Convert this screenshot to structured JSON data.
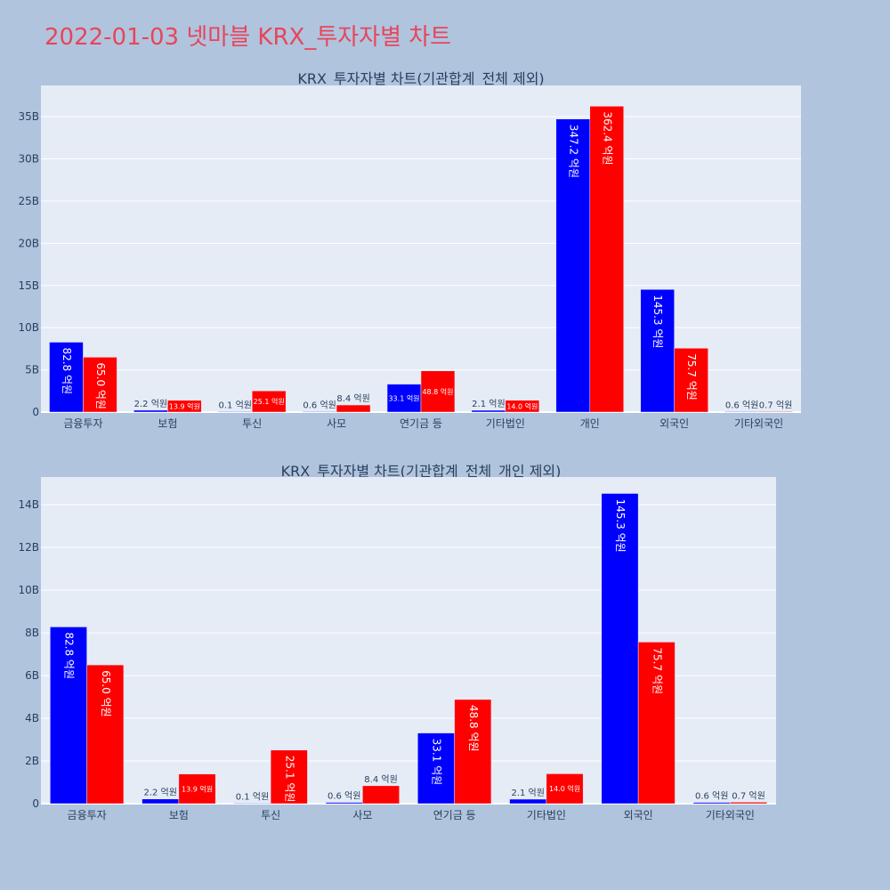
{
  "title": "2022-01-03 넷마블 KRX_투자자별 차트",
  "colors": {
    "background": "#b0c4de",
    "plot": "#e5ecf6",
    "title": "#e8455a",
    "sell": "#0000ff",
    "buy": "#ff0000",
    "text": "#2a3f5f"
  },
  "chart_data": [
    {
      "type": "bar",
      "title": "KRX_투자자별 차트(기관합계_전체 제외)",
      "categories": [
        "금융투자",
        "보험",
        "투신",
        "사모",
        "연기금 등",
        "기타법인",
        "개인",
        "외국인",
        "기타외국인"
      ],
      "series": [
        {
          "color": "#0000ff",
          "values": [
            8280000000,
            220000000,
            10000000,
            60000000,
            3310000000,
            210000000,
            34720000000,
            14530000000,
            60000000
          ],
          "labels": [
            "82.8 억원",
            "2.2 억원",
            "0.1 억원",
            "0.6 억원",
            "33.1 억원",
            "2.1 억원",
            "347.2 억원",
            "145.3 억원",
            "0.6 억원"
          ]
        },
        {
          "color": "#ff0000",
          "values": [
            6500000000,
            1390000000,
            2510000000,
            840000000,
            4880000000,
            1400000000,
            36240000000,
            7570000000,
            70000000
          ],
          "labels": [
            "65.0 억원",
            "13.9 억원",
            "25.1 억원",
            "8.4 억원",
            "48.8 억원",
            "14.0 억원",
            "362.4 억원",
            "75.7 억원",
            "0.7 억원"
          ]
        }
      ],
      "yticks": [
        0,
        5000000000,
        10000000000,
        15000000000,
        20000000000,
        25000000000,
        30000000000,
        35000000000
      ],
      "ytick_labels": [
        "0",
        "5B",
        "10B",
        "15B",
        "20B",
        "25B",
        "30B",
        "35B"
      ],
      "ylim": [
        0,
        38700000000
      ],
      "grid": true
    },
    {
      "type": "bar",
      "title": "KRX_투자자별 차트(기관합계_전체_개인 제외)",
      "categories": [
        "금융투자",
        "보험",
        "투신",
        "사모",
        "연기금 등",
        "기타법인",
        "외국인",
        "기타외국인"
      ],
      "series": [
        {
          "color": "#0000ff",
          "values": [
            8280000000,
            220000000,
            10000000,
            60000000,
            3310000000,
            210000000,
            14530000000,
            60000000
          ],
          "labels": [
            "82.8 억원",
            "2.2 억원",
            "0.1 억원",
            "0.6 억원",
            "33.1 억원",
            "2.1 억원",
            "145.3 억원",
            "0.6 억원"
          ]
        },
        {
          "color": "#ff0000",
          "values": [
            6500000000,
            1390000000,
            2510000000,
            840000000,
            4880000000,
            1400000000,
            7570000000,
            70000000
          ],
          "labels": [
            "65.0 억원",
            "13.9 억원",
            "25.1 억원",
            "8.4 억원",
            "48.8 억원",
            "14.0 억원",
            "75.7 억원",
            "0.7 억원"
          ]
        }
      ],
      "yticks": [
        0,
        2000000000,
        4000000000,
        6000000000,
        8000000000,
        10000000000,
        12000000000,
        14000000000
      ],
      "ytick_labels": [
        "0",
        "2B",
        "4B",
        "6B",
        "8B",
        "10B",
        "12B",
        "14B"
      ],
      "ylim": [
        0,
        15300000000
      ],
      "grid": true
    }
  ]
}
